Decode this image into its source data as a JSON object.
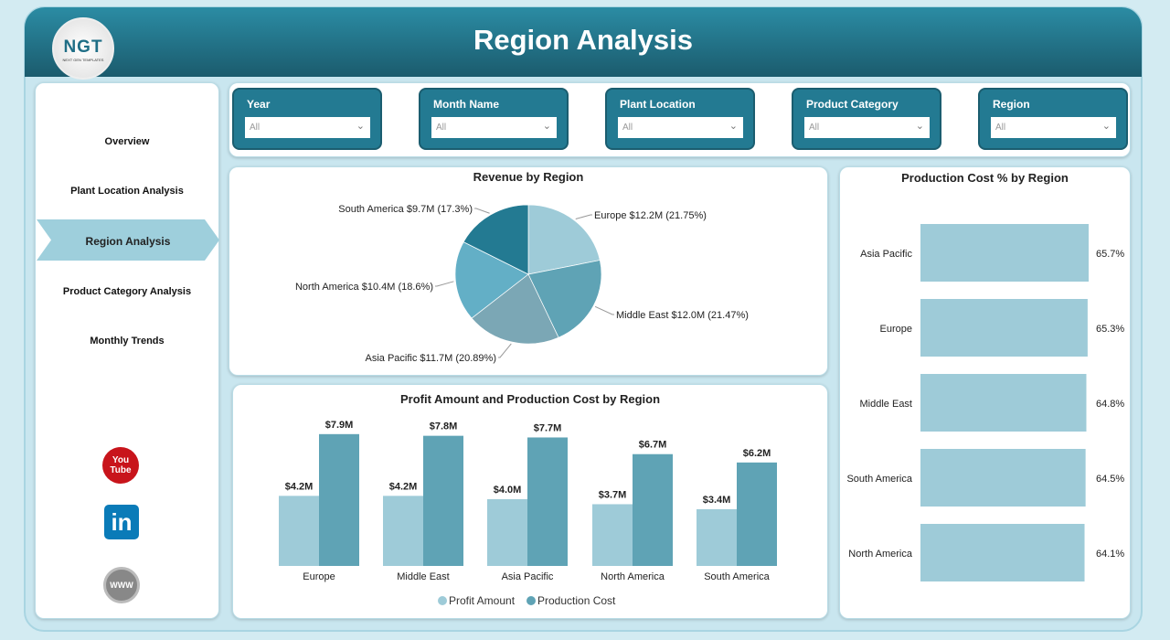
{
  "header": {
    "title": "Region Analysis",
    "logo_text": "NGT",
    "logo_sub": "NEXT GEN TEMPLATES"
  },
  "sidebar": {
    "items": [
      {
        "label": "Overview"
      },
      {
        "label": "Plant Location Analysis"
      },
      {
        "label": "Region Analysis",
        "active": true
      },
      {
        "label": "Product Category Analysis"
      },
      {
        "label": "Monthly Trends"
      }
    ],
    "social": [
      {
        "icon": "youtube-icon",
        "label": "You Tube"
      },
      {
        "icon": "linkedin-icon",
        "label": "in"
      },
      {
        "icon": "www-globe-icon",
        "label": "WWW"
      }
    ]
  },
  "filters": [
    {
      "label": "Year",
      "value": "All"
    },
    {
      "label": "Month Name",
      "value": "All"
    },
    {
      "label": "Plant Location",
      "value": "All"
    },
    {
      "label": "Product Category",
      "value": "All"
    },
    {
      "label": "Region",
      "value": "All"
    }
  ],
  "chart_data": [
    {
      "type": "pie",
      "title": "Revenue by Region",
      "slices": [
        {
          "label": "Europe $12.2M (21.75%)",
          "name": "Europe",
          "value": 12.2,
          "percent": 21.75,
          "color": "#9ecbd8"
        },
        {
          "label": "Middle East $12.0M (21.47%)",
          "name": "Middle East",
          "value": 12.0,
          "percent": 21.47,
          "color": "#5fa3b5"
        },
        {
          "label": "Asia Pacific $11.7M (20.89%)",
          "name": "Asia Pacific",
          "value": 11.7,
          "percent": 20.89,
          "color": "#7ba7b5"
        },
        {
          "label": "North America $10.4M (18.6%)",
          "name": "North America",
          "value": 10.4,
          "percent": 18.6,
          "color": "#63afc6"
        },
        {
          "label": "South America $9.7M (17.3%)",
          "name": "South America",
          "value": 9.7,
          "percent": 17.3,
          "color": "#237a92"
        }
      ]
    },
    {
      "type": "bar",
      "title": "Profit Amount and Production Cost by Region",
      "categories": [
        "Europe",
        "Middle East",
        "Asia Pacific",
        "North America",
        "South America"
      ],
      "series": [
        {
          "name": "Profit Amount",
          "values": [
            4.2,
            4.2,
            4.0,
            3.7,
            3.4
          ],
          "labels": [
            "$4.2M",
            "$4.2M",
            "$4.0M",
            "$3.7M",
            "$3.4M"
          ],
          "color": "#9ecbd8"
        },
        {
          "name": "Production Cost",
          "values": [
            7.9,
            7.8,
            7.7,
            6.7,
            6.2
          ],
          "labels": [
            "$7.9M",
            "$7.8M",
            "$7.7M",
            "$6.7M",
            "$6.2M"
          ],
          "color": "#5fa3b5"
        }
      ],
      "legend": "bottom"
    },
    {
      "type": "bar",
      "orientation": "horizontal",
      "title": "Production Cost % by Region",
      "categories": [
        "Asia Pacific",
        "Europe",
        "Middle East",
        "South America",
        "North America"
      ],
      "values": [
        65.7,
        65.3,
        64.8,
        64.5,
        64.1
      ],
      "labels": [
        "65.7%",
        "65.3%",
        "64.8%",
        "64.5%",
        "64.1%"
      ],
      "color": "#9ecbd8"
    }
  ]
}
